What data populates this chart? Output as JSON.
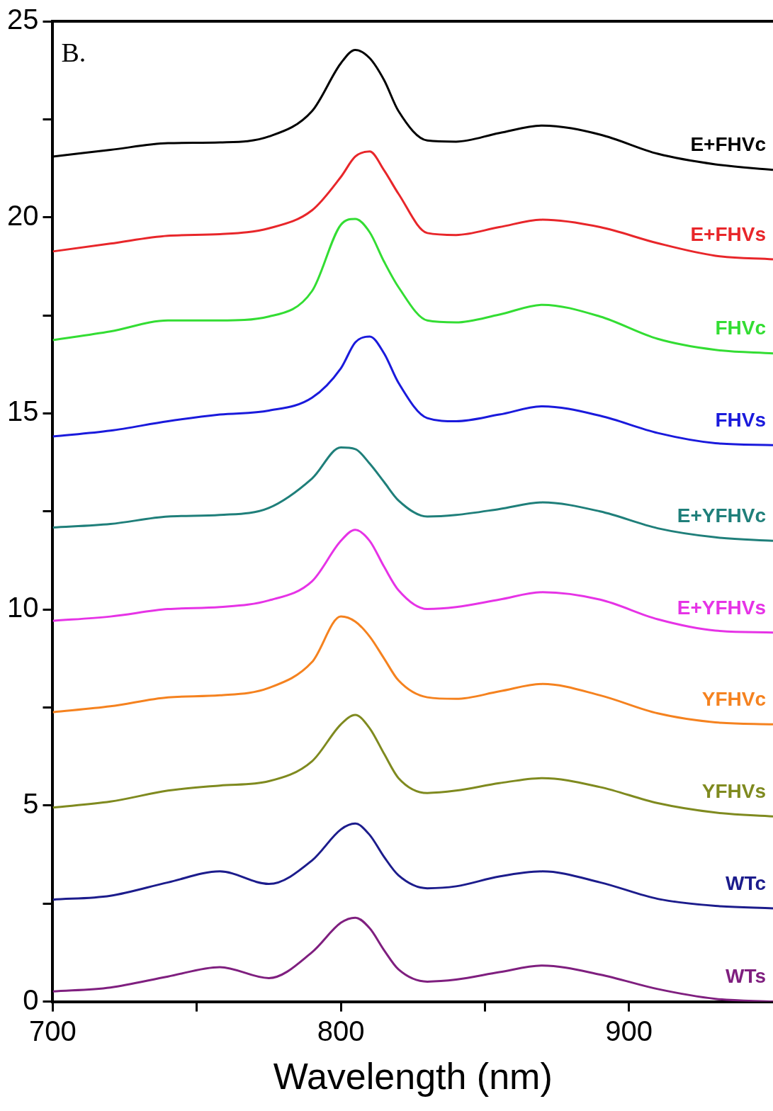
{
  "chart_data": {
    "type": "line",
    "xlabel": "Wavelength (nm)",
    "annotations": [
      "B."
    ],
    "x": [
      700,
      720,
      740,
      758,
      775,
      790,
      800,
      805,
      810,
      815,
      820,
      830,
      840,
      855,
      870,
      890,
      910,
      930,
      950
    ],
    "xlim": [
      700,
      950
    ],
    "xticks": [
      700,
      {
        "value": 750,
        "label": null
      },
      800,
      {
        "value": 850,
        "label": null
      },
      900
    ],
    "ylim": [
      0,
      25
    ],
    "yticks": [
      0,
      {
        "value": 2.5,
        "label": null
      },
      5,
      {
        "value": 7.5,
        "label": null
      },
      10,
      {
        "value": 12.5,
        "label": null
      },
      15,
      {
        "value": 17.5,
        "label": null
      },
      20,
      {
        "value": 22.5,
        "label": null
      },
      25
    ],
    "grid": false,
    "legend": false,
    "marker": "none",
    "line_style": "solid",
    "series": [
      {
        "name": "E+FHVc",
        "color": "#000000",
        "values": [
          21.55,
          21.72,
          21.89,
          21.91,
          22.06,
          22.71,
          23.93,
          24.27,
          24.06,
          23.5,
          22.71,
          21.96,
          21.93,
          22.15,
          22.34,
          22.11,
          21.62,
          21.35,
          21.21
        ]
      },
      {
        "name": "E+FHVs",
        "color": "#e8262a",
        "values": [
          19.13,
          19.33,
          19.53,
          19.57,
          19.72,
          20.18,
          21.03,
          21.55,
          21.68,
          21.2,
          20.6,
          19.6,
          19.55,
          19.75,
          19.94,
          19.75,
          19.34,
          19.02,
          18.93
        ]
      },
      {
        "name": "FHVc",
        "color": "#33dd33",
        "values": [
          16.87,
          17.09,
          17.37,
          17.37,
          17.47,
          18.12,
          19.81,
          19.96,
          19.62,
          18.87,
          18.22,
          17.37,
          17.32,
          17.52,
          17.77,
          17.47,
          16.9,
          16.62,
          16.53
        ]
      },
      {
        "name": "FHVs",
        "color": "#1a1adc",
        "values": [
          14.41,
          14.56,
          14.8,
          14.97,
          15.07,
          15.4,
          16.15,
          16.81,
          16.96,
          16.53,
          15.78,
          14.88,
          14.8,
          14.97,
          15.18,
          14.94,
          14.5,
          14.24,
          14.19
        ]
      },
      {
        "name": "E+YFHVc",
        "color": "#1f7f7a",
        "values": [
          12.09,
          12.18,
          12.37,
          12.41,
          12.59,
          13.34,
          14.13,
          14.09,
          13.72,
          13.25,
          12.78,
          12.37,
          12.41,
          12.56,
          12.73,
          12.5,
          12.07,
          11.84,
          11.75
        ]
      },
      {
        "name": "E+YFHVs",
        "color": "#e633e6",
        "values": [
          9.71,
          9.82,
          10.01,
          10.06,
          10.23,
          10.72,
          11.75,
          12.03,
          11.75,
          11.09,
          10.49,
          10.01,
          10.06,
          10.25,
          10.44,
          10.25,
          9.75,
          9.46,
          9.41
        ]
      },
      {
        "name": "YFHVc",
        "color": "#f5821f",
        "values": [
          7.38,
          7.53,
          7.76,
          7.81,
          8.0,
          8.66,
          9.82,
          9.69,
          9.31,
          8.75,
          8.19,
          7.76,
          7.72,
          7.91,
          8.1,
          7.81,
          7.35,
          7.12,
          7.07
        ]
      },
      {
        "name": "YFHVs",
        "color": "#7f8a1f",
        "values": [
          4.95,
          5.1,
          5.38,
          5.51,
          5.62,
          6.13,
          7.07,
          7.31,
          6.97,
          6.32,
          5.7,
          5.32,
          5.38,
          5.57,
          5.7,
          5.47,
          5.06,
          4.82,
          4.72
        ]
      },
      {
        "name": "WTc",
        "color": "#1c1c8c",
        "values": [
          2.6,
          2.7,
          3.04,
          3.32,
          3.0,
          3.6,
          4.39,
          4.54,
          4.25,
          3.69,
          3.22,
          2.89,
          2.94,
          3.19,
          3.32,
          3.04,
          2.62,
          2.44,
          2.38
        ]
      },
      {
        "name": "WTs",
        "color": "#7f1f7f",
        "values": [
          0.26,
          0.36,
          0.64,
          0.88,
          0.6,
          1.26,
          2.01,
          2.14,
          1.87,
          1.31,
          0.82,
          0.51,
          0.56,
          0.75,
          0.92,
          0.69,
          0.32,
          0.07,
          0.0
        ]
      }
    ]
  }
}
